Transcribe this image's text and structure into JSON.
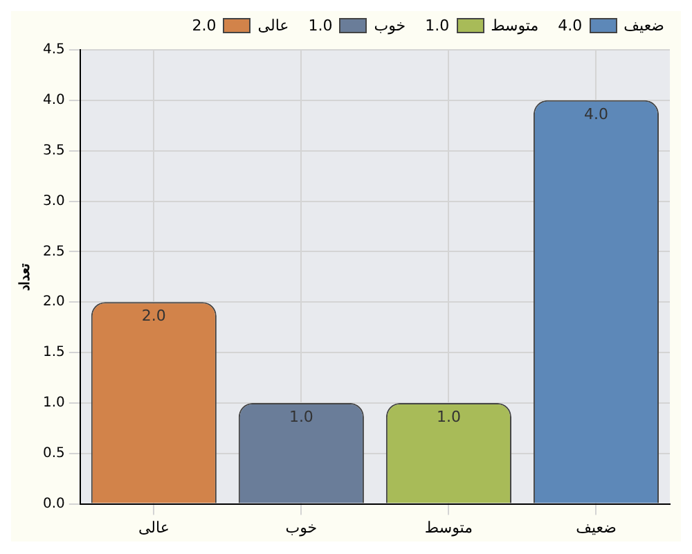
{
  "chart_data": {
    "type": "bar",
    "ylabel": "تعداد",
    "categories": [
      "عالی",
      "خوب",
      "متوسط",
      "ضعیف"
    ],
    "series": [
      {
        "name": "عالی",
        "color": "#d2834a",
        "values": [
          2,
          null,
          null,
          null
        ],
        "value_labels": [
          "2.0",
          null,
          null,
          null
        ]
      },
      {
        "name": "خوب",
        "color": "#6a7d99",
        "values": [
          null,
          1,
          null,
          null
        ],
        "value_labels": [
          null,
          "1.0",
          null,
          null
        ]
      },
      {
        "name": "متوسط",
        "color": "#a8bb58",
        "values": [
          null,
          null,
          1,
          null
        ],
        "value_labels": [
          null,
          null,
          "1.0",
          null
        ]
      },
      {
        "name": "ضعیف",
        "color": "#5d88b8",
        "values": [
          null,
          null,
          null,
          4
        ],
        "value_labels": [
          null,
          null,
          null,
          "4.0"
        ]
      }
    ],
    "ylim": [
      0,
      4.5
    ],
    "yticks": [
      {
        "value": 0,
        "label": "0.0"
      },
      {
        "value": 0.5,
        "label": "0.5"
      },
      {
        "value": 1,
        "label": "1.0"
      },
      {
        "value": 1.5,
        "label": "1.5"
      },
      {
        "value": 2,
        "label": "2.0"
      },
      {
        "value": 2.5,
        "label": "2.5"
      },
      {
        "value": 3,
        "label": "3.0"
      },
      {
        "value": 3.5,
        "label": "3.5"
      },
      {
        "value": 4,
        "label": "4.0"
      },
      {
        "value": 4.5,
        "label": "4.5"
      }
    ],
    "grid": true,
    "legend": "top right"
  }
}
